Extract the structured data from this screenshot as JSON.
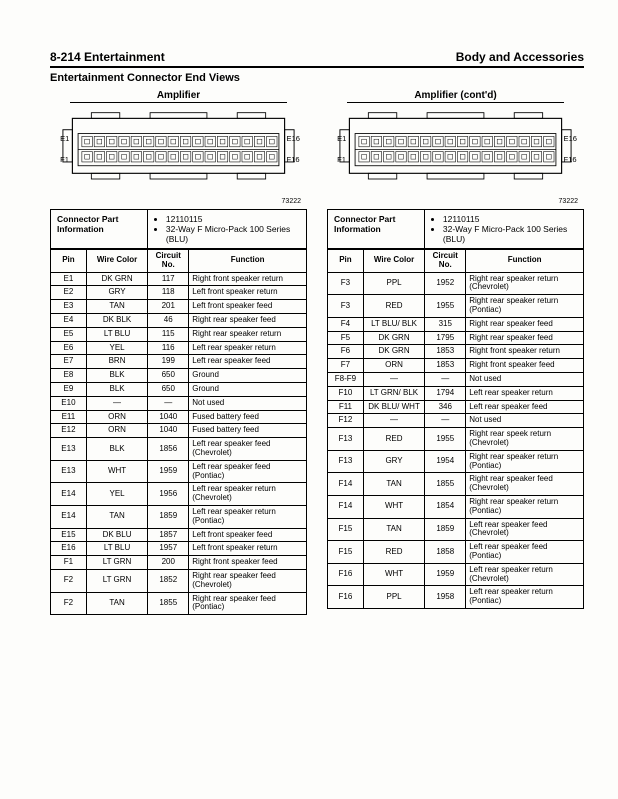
{
  "header": {
    "left": "8-214   Entertainment",
    "right": "Body and Accessories"
  },
  "subheader": "Entertainment Connector End Views",
  "left": {
    "title": "Amplifier",
    "figno": "73222",
    "info": {
      "label": "Connector Part Information",
      "b1": "12110115",
      "b2": "32-Way F Micro-Pack 100 Series (BLU)"
    },
    "th": {
      "pin": "Pin",
      "wire": "Wire Color",
      "circ": "Circuit No.",
      "func": "Function"
    },
    "rows": [
      {
        "pin": "E1",
        "wire": "DK GRN",
        "circ": "117",
        "func": "Right front speaker return"
      },
      {
        "pin": "E2",
        "wire": "GRY",
        "circ": "118",
        "func": "Left front speaker return"
      },
      {
        "pin": "E3",
        "wire": "TAN",
        "circ": "201",
        "func": "Left front speaker feed"
      },
      {
        "pin": "E4",
        "wire": "DK BLK",
        "circ": "46",
        "func": "Right rear speaker feed"
      },
      {
        "pin": "E5",
        "wire": "LT BLU",
        "circ": "115",
        "func": "Right rear speaker return"
      },
      {
        "pin": "E6",
        "wire": "YEL",
        "circ": "116",
        "func": "Left rear speaker return"
      },
      {
        "pin": "E7",
        "wire": "BRN",
        "circ": "199",
        "func": "Left rear speaker feed"
      },
      {
        "pin": "E8",
        "wire": "BLK",
        "circ": "650",
        "func": "Ground"
      },
      {
        "pin": "E9",
        "wire": "BLK",
        "circ": "650",
        "func": "Ground"
      },
      {
        "pin": "E10",
        "wire": "—",
        "circ": "—",
        "func": "Not used"
      },
      {
        "pin": "E11",
        "wire": "ORN",
        "circ": "1040",
        "func": "Fused battery feed"
      },
      {
        "pin": "E12",
        "wire": "ORN",
        "circ": "1040",
        "func": "Fused battery feed"
      },
      {
        "pin": "E13",
        "wire": "BLK",
        "circ": "1856",
        "func": "Left rear speaker feed (Chevrolet)"
      },
      {
        "pin": "E13",
        "wire": "WHT",
        "circ": "1959",
        "func": "Left rear speaker feed (Pontiac)"
      },
      {
        "pin": "E14",
        "wire": "YEL",
        "circ": "1956",
        "func": "Left rear speaker return (Chevrolet)"
      },
      {
        "pin": "E14",
        "wire": "TAN",
        "circ": "1859",
        "func": "Left rear speaker return (Pontiac)"
      },
      {
        "pin": "E15",
        "wire": "DK BLU",
        "circ": "1857",
        "func": "Left front speaker feed"
      },
      {
        "pin": "E16",
        "wire": "LT BLU",
        "circ": "1957",
        "func": "Left front speaker return"
      },
      {
        "pin": "F1",
        "wire": "LT GRN",
        "circ": "200",
        "func": "Right front speaker feed"
      },
      {
        "pin": "F2",
        "wire": "LT GRN",
        "circ": "1852",
        "func": "Right rear speaker feed (Chevrolet)"
      },
      {
        "pin": "F2",
        "wire": "TAN",
        "circ": "1855",
        "func": "Right rear speaker feed (Pontiac)"
      }
    ]
  },
  "right": {
    "title": "Amplifier (cont'd)",
    "figno": "73222",
    "info": {
      "label": "Connector Part Information",
      "b1": "12110115",
      "b2": "32-Way F Micro-Pack 100 Series (BLU)"
    },
    "th": {
      "pin": "Pin",
      "wire": "Wire Color",
      "circ": "Circuit No.",
      "func": "Function"
    },
    "rows": [
      {
        "pin": "F3",
        "wire": "PPL",
        "circ": "1952",
        "func": "Right rear speaker return (Chevrolet)"
      },
      {
        "pin": "F3",
        "wire": "RED",
        "circ": "1955",
        "func": "Right rear speaker return (Pontiac)"
      },
      {
        "pin": "F4",
        "wire": "LT BLU/ BLK",
        "circ": "315",
        "func": "Right rear speaker feed"
      },
      {
        "pin": "F5",
        "wire": "DK GRN",
        "circ": "1795",
        "func": "Right rear speaker feed"
      },
      {
        "pin": "F6",
        "wire": "DK GRN",
        "circ": "1853",
        "func": "Right front speaker return"
      },
      {
        "pin": "F7",
        "wire": "ORN",
        "circ": "1853",
        "func": "Right front speaker feed"
      },
      {
        "pin": "F8-F9",
        "wire": "—",
        "circ": "—",
        "func": "Not used"
      },
      {
        "pin": "F10",
        "wire": "LT GRN/ BLK",
        "circ": "1794",
        "func": "Left rear speaker return"
      },
      {
        "pin": "F11",
        "wire": "DK BLU/ WHT",
        "circ": "346",
        "func": "Left rear speaker feed"
      },
      {
        "pin": "F12",
        "wire": "—",
        "circ": "—",
        "func": "Not used"
      },
      {
        "pin": "F13",
        "wire": "RED",
        "circ": "1955",
        "func": "Right rear speek return (Chevrolet)"
      },
      {
        "pin": "F13",
        "wire": "GRY",
        "circ": "1954",
        "func": "Right rear speaker return (Pontiac)"
      },
      {
        "pin": "F14",
        "wire": "TAN",
        "circ": "1855",
        "func": "Right rear speaker feed (Chevrolet)"
      },
      {
        "pin": "F14",
        "wire": "WHT",
        "circ": "1854",
        "func": "Right rear speaker return (Pontiac)"
      },
      {
        "pin": "F15",
        "wire": "TAN",
        "circ": "1859",
        "func": "Left rear speaker feed (Chevrolet)"
      },
      {
        "pin": "F15",
        "wire": "RED",
        "circ": "1858",
        "func": "Left rear speaker feed (Pontiac)"
      },
      {
        "pin": "F16",
        "wire": "WHT",
        "circ": "1959",
        "func": "Left rear speaker return (Chevrolet)"
      },
      {
        "pin": "F16",
        "wire": "PPL",
        "circ": "1958",
        "func": "Left rear speaker return (Pontiac)"
      }
    ]
  },
  "connector": {
    "labels": {
      "e1": "E1",
      "e16": "E16",
      "f1": "F1",
      "f16": "F16"
    }
  },
  "style": {
    "bg": "#fdfdfb",
    "text": "#000000",
    "border": "#000000"
  }
}
